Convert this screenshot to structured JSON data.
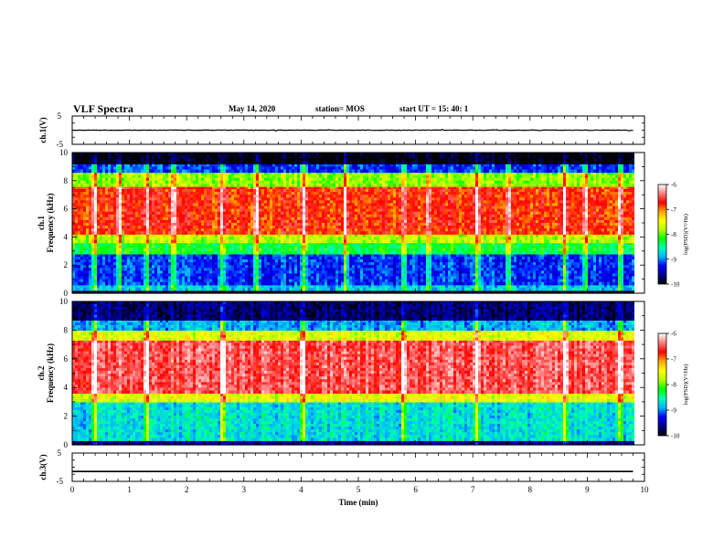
{
  "header": {
    "title": "VLF Spectra",
    "date": "May 14, 2020",
    "station": "station= MOS",
    "start": "start  UT =   15: 40: 1"
  },
  "colors": {
    "spectrogram": [
      "#000000",
      "#00008b",
      "#0000ff",
      "#00b4ff",
      "#00ffb4",
      "#00ff00",
      "#b4ff00",
      "#ffff00",
      "#ffa500",
      "#ff0000",
      "#ff8080",
      "#ffffff"
    ],
    "trace": "#000000"
  },
  "chart_data": [
    {
      "type": "line",
      "panel": "ch1-waveform",
      "ylabel": "ch.1(V)",
      "ylim": [
        -5,
        5
      ],
      "yticks": [
        "5",
        "-5"
      ],
      "xlim": [
        0,
        10
      ],
      "series": [
        {
          "x": [
            0,
            9.8
          ],
          "y": [
            0,
            0
          ]
        }
      ],
      "note_values": "trace near 0 V with small spikes"
    },
    {
      "type": "heatmap",
      "panel": "ch1-spectrogram",
      "ylabel": "ch.1\nFrequency (kHz)",
      "ylim": [
        0,
        10
      ],
      "yticks": [
        "0",
        "2",
        "4",
        "6",
        "8",
        "10"
      ],
      "xlim": [
        0,
        10
      ],
      "data_end_min": 9.8,
      "colorbar": {
        "label": "log(PSD)(V²/Hz)",
        "range": [
          -10,
          -6
        ],
        "ticks": [
          "-6",
          "-7",
          "-8",
          "-9",
          "-10"
        ]
      },
      "bands_khz_log_psd": [
        {
          "from": 0,
          "to": 0.2,
          "level": -10
        },
        {
          "from": 0.2,
          "to": 0.6,
          "level": -8.8
        },
        {
          "from": 0.6,
          "to": 2.8,
          "level": -9.2
        },
        {
          "from": 2.8,
          "to": 3.6,
          "level": -8.3
        },
        {
          "from": 3.6,
          "to": 4.2,
          "level": -7.8
        },
        {
          "from": 4.2,
          "to": 7.6,
          "level": -6.8
        },
        {
          "from": 7.6,
          "to": 8.6,
          "level": -7.9
        },
        {
          "from": 8.6,
          "to": 9.2,
          "level": -9.2
        },
        {
          "from": 9.2,
          "to": 10,
          "level": -10
        }
      ],
      "vertical_streaks_min": [
        0.37,
        0.8,
        1.28,
        1.75,
        2.6,
        3.2,
        4.02,
        4.75,
        5.77,
        6.2,
        7.05,
        7.6,
        8.58,
        8.95,
        9.55
      ]
    },
    {
      "type": "heatmap",
      "panel": "ch2-spectrogram",
      "ylabel": "ch.2\nFrequency (kHz)",
      "ylim": [
        0,
        10
      ],
      "yticks": [
        "0",
        "2",
        "4",
        "6",
        "8",
        "10"
      ],
      "xlim": [
        0,
        10
      ],
      "data_end_min": 9.8,
      "colorbar": {
        "label": "log(PSD)(V²/Hz)",
        "range": [
          -10,
          -6
        ],
        "ticks": [
          "-6",
          "-7",
          "-8",
          "-9",
          "-10"
        ]
      },
      "bands_khz_log_psd": [
        {
          "from": 0,
          "to": 0.3,
          "level": -9.6
        },
        {
          "from": 0.3,
          "to": 3.0,
          "level": -8.7
        },
        {
          "from": 3.0,
          "to": 3.6,
          "level": -7.6
        },
        {
          "from": 3.6,
          "to": 7.3,
          "level": -6.5
        },
        {
          "from": 7.3,
          "to": 8.0,
          "level": -7.6
        },
        {
          "from": 8.0,
          "to": 8.7,
          "level": -8.9
        },
        {
          "from": 8.7,
          "to": 10,
          "level": -9.7
        }
      ],
      "vertical_streaks_min": [
        0.37,
        1.28,
        2.6,
        4.02,
        5.77,
        7.05,
        8.58,
        9.55
      ]
    },
    {
      "type": "line",
      "panel": "ch3-waveform",
      "ylabel": "ch.3(V)",
      "ylim": [
        -5,
        5
      ],
      "yticks": [
        "5",
        "-5"
      ],
      "xlim": [
        0,
        10
      ],
      "xlabel": "Time (min)",
      "xticks": [
        "0",
        "1",
        "2",
        "3",
        "4",
        "5",
        "6",
        "7",
        "8",
        "9",
        "10"
      ],
      "series": [
        {
          "x": [
            0,
            9.8
          ],
          "y": [
            -1.5,
            -1.5
          ]
        }
      ]
    }
  ]
}
